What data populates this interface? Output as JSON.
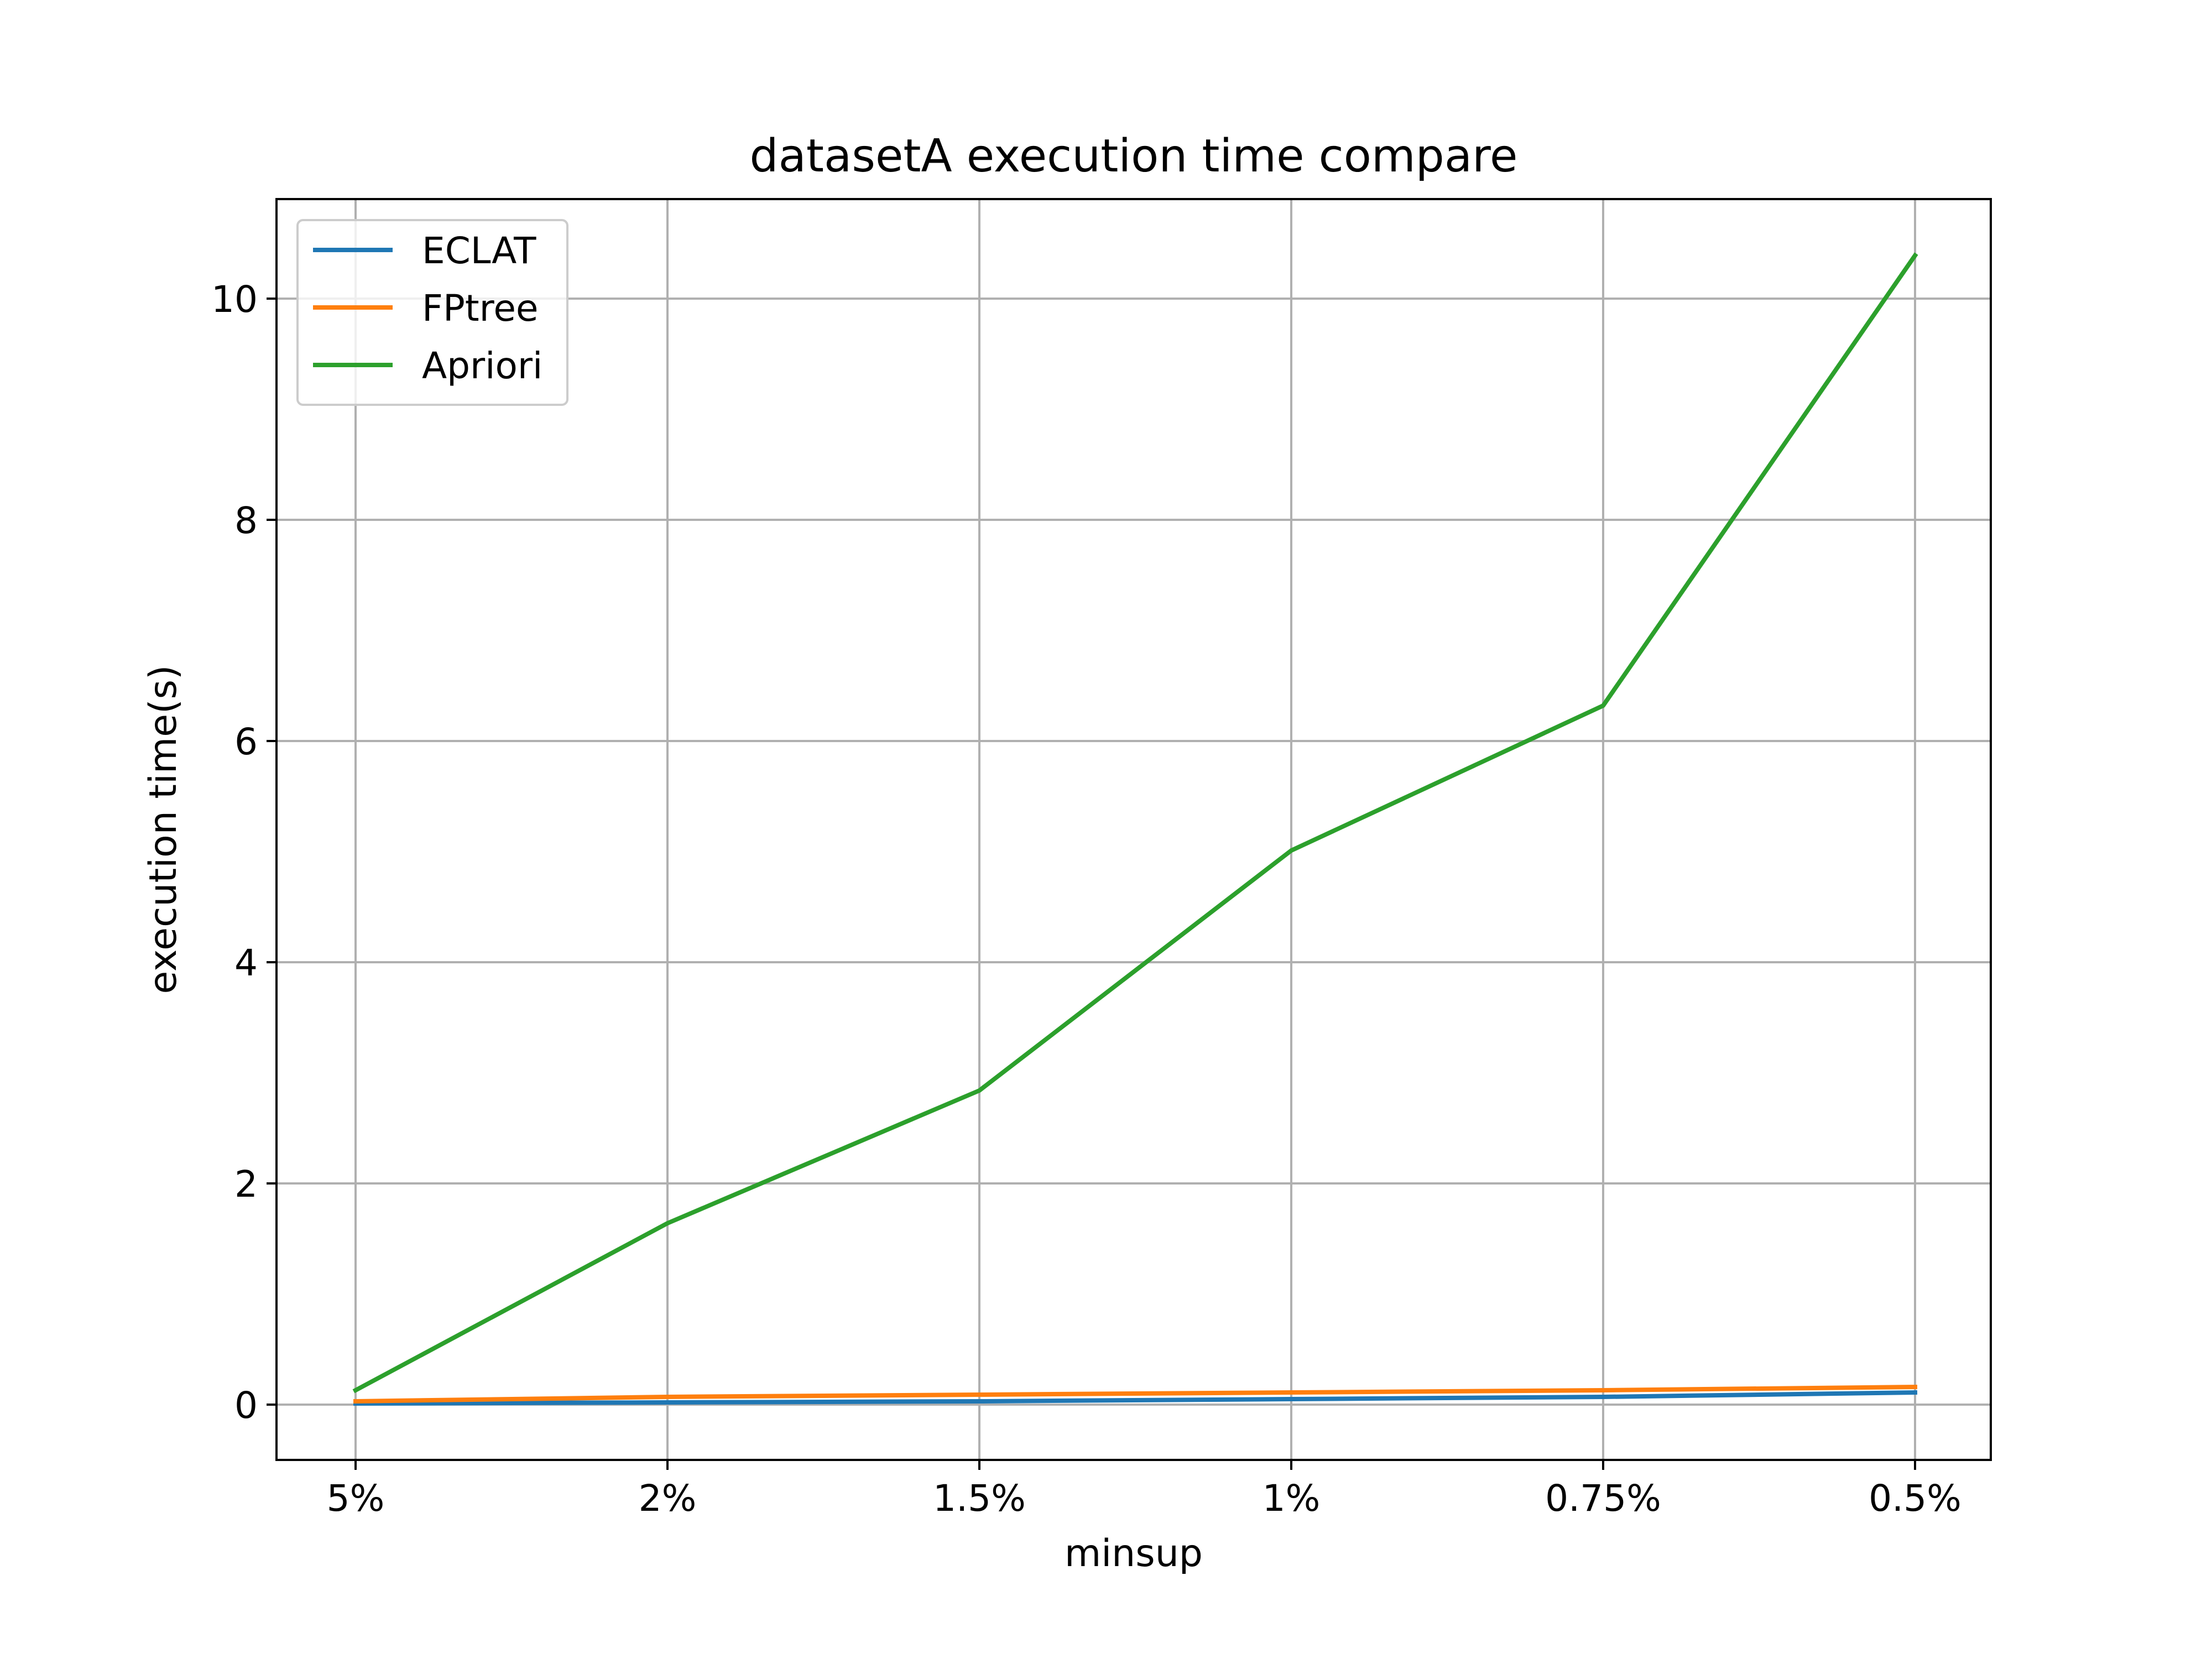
{
  "chart_data": {
    "type": "line",
    "title": "datasetA execution time compare",
    "xlabel": "minsup",
    "ylabel": "execution time(s)",
    "categories": [
      "5%",
      "2%",
      "1.5%",
      "1%",
      "0.75%",
      "0.5%"
    ],
    "ylim": [
      -0.5,
      10.9
    ],
    "yticks": [
      0,
      2,
      4,
      6,
      8,
      10
    ],
    "grid": true,
    "legend_position": "upper left",
    "series": [
      {
        "name": "ECLAT",
        "color": "#1f77b4",
        "values": [
          0.01,
          0.02,
          0.03,
          0.05,
          0.07,
          0.11
        ]
      },
      {
        "name": "FPtree",
        "color": "#ff7f0e",
        "values": [
          0.03,
          0.07,
          0.09,
          0.11,
          0.13,
          0.16
        ]
      },
      {
        "name": "Apriori",
        "color": "#2ca02c",
        "values": [
          0.13,
          1.64,
          2.84,
          5.01,
          6.32,
          10.39
        ]
      }
    ]
  }
}
